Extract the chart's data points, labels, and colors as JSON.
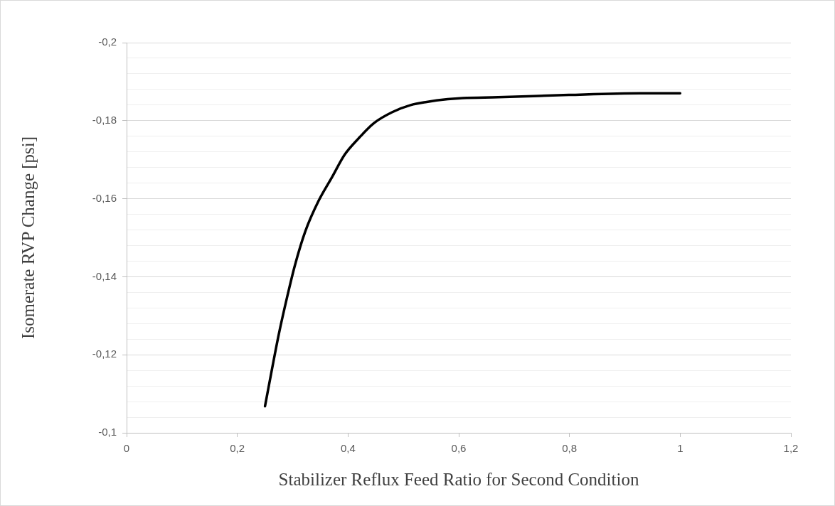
{
  "chart_data": {
    "type": "line",
    "xlabel": "Stabilizer Reflux Feed Ratio for Second Condition",
    "ylabel": "Isomerate RVP Change [psi]",
    "series": [
      {
        "color": "#000000",
        "x": [
          0.25,
          0.263,
          0.275,
          0.29,
          0.304,
          0.323,
          0.347,
          0.371,
          0.394,
          0.418,
          0.447,
          0.48,
          0.513,
          0.542,
          0.58,
          0.607,
          0.671,
          0.799,
          0.928,
          1.0
        ],
        "values": [
          -0.1068,
          -0.1166,
          -0.1253,
          -0.1348,
          -0.1429,
          -0.1517,
          -0.1595,
          -0.1655,
          -0.1713,
          -0.1753,
          -0.1794,
          -0.1822,
          -0.184,
          -0.1848,
          -0.1855,
          -0.1858,
          -0.186,
          -0.1866,
          -0.187,
          -0.187
        ]
      }
    ],
    "xlim": [
      0,
      1.2
    ],
    "xticks": [
      0,
      {
        "value": 0.2,
        "label": "0,2"
      },
      {
        "value": 0.4,
        "label": "0,4"
      },
      {
        "value": 0.6,
        "label": "0,6"
      },
      {
        "value": 0.8,
        "label": "0,8"
      },
      1,
      {
        "value": 1.2,
        "label": "1,2"
      }
    ],
    "ylim": [
      -0.1,
      -0.2
    ],
    "yticks": [
      {
        "value": -0.2,
        "label": "-0,2"
      },
      {
        "value": -0.196,
        "label": null
      },
      {
        "value": -0.192,
        "label": null
      },
      {
        "value": -0.188,
        "label": null
      },
      {
        "value": -0.184,
        "label": null
      },
      {
        "value": -0.18,
        "label": "-0,18"
      },
      {
        "value": -0.176,
        "label": null
      },
      {
        "value": -0.172,
        "label": null
      },
      {
        "value": -0.168,
        "label": null
      },
      {
        "value": -0.164,
        "label": null
      },
      {
        "value": -0.16,
        "label": "-0,16"
      },
      {
        "value": -0.156,
        "label": null
      },
      {
        "value": -0.152,
        "label": null
      },
      {
        "value": -0.148,
        "label": null
      },
      {
        "value": -0.144,
        "label": null
      },
      {
        "value": -0.14,
        "label": "-0,14"
      },
      {
        "value": -0.136,
        "label": null
      },
      {
        "value": -0.132,
        "label": null
      },
      {
        "value": -0.128,
        "label": null
      },
      {
        "value": -0.124,
        "label": null
      },
      {
        "value": -0.12,
        "label": "-0,12"
      },
      {
        "value": -0.116,
        "label": null
      },
      {
        "value": -0.112,
        "label": null
      },
      {
        "value": -0.108,
        "label": null
      },
      {
        "value": -0.104,
        "label": null
      },
      {
        "value": -0.1,
        "label": "-0,1"
      }
    ],
    "grid": "y",
    "line_style": "solid"
  }
}
